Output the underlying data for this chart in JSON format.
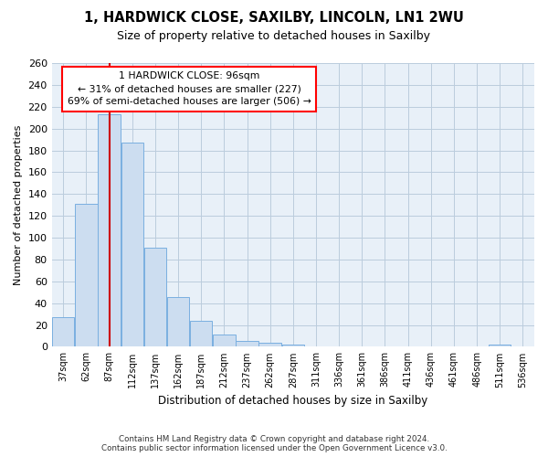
{
  "title1": "1, HARDWICK CLOSE, SAXILBY, LINCOLN, LN1 2WU",
  "title2": "Size of property relative to detached houses in Saxilby",
  "xlabel": "Distribution of detached houses by size in Saxilby",
  "ylabel": "Number of detached properties",
  "categories": [
    "37sqm",
    "62sqm",
    "87sqm",
    "112sqm",
    "137sqm",
    "162sqm",
    "187sqm",
    "212sqm",
    "237sqm",
    "262sqm",
    "287sqm",
    "311sqm",
    "336sqm",
    "361sqm",
    "386sqm",
    "411sqm",
    "436sqm",
    "461sqm",
    "486sqm",
    "511sqm",
    "536sqm"
  ],
  "values": [
    27,
    131,
    213,
    187,
    91,
    46,
    24,
    11,
    5,
    4,
    2,
    0,
    0,
    0,
    0,
    0,
    0,
    0,
    0,
    2,
    0
  ],
  "bar_color": "#ccddf0",
  "bar_edge_color": "#7aafe0",
  "grid_color": "#bbccdd",
  "background_color": "#e8f0f8",
  "vline_x": 2.0,
  "vline_color": "#cc0000",
  "annotation_title": "1 HARDWICK CLOSE: 96sqm",
  "annotation_line1": "← 31% of detached houses are smaller (227)",
  "annotation_line2": "69% of semi-detached houses are larger (506) →",
  "footer1": "Contains HM Land Registry data © Crown copyright and database right 2024.",
  "footer2": "Contains public sector information licensed under the Open Government Licence v3.0.",
  "ylim": [
    0,
    260
  ],
  "yticks": [
    0,
    20,
    40,
    60,
    80,
    100,
    120,
    140,
    160,
    180,
    200,
    220,
    240,
    260
  ]
}
